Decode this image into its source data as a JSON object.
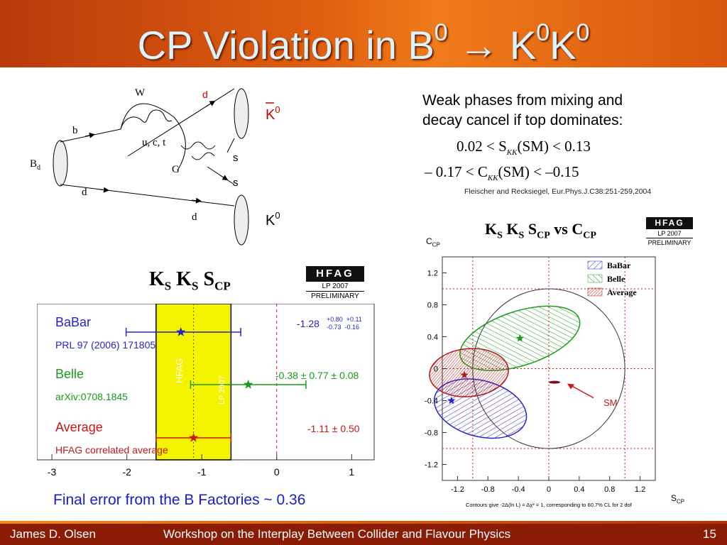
{
  "slide": {
    "title_main": "CP Violation in B",
    "title_sup1": "0",
    "title_arrow": "→",
    "title_k1": "K",
    "title_sup2": "0",
    "title_k2": "K",
    "title_sup3": "0"
  },
  "diagram": {
    "W": "W",
    "d_top": "d",
    "kbar": "K",
    "kbar_sup": "0",
    "b": "b",
    "uct": "u, c, t",
    "Bd": "B",
    "Bd_sub": "d",
    "G": "G",
    "s1": "s",
    "s2": "s",
    "d_left": "d",
    "d_bottom": "d",
    "k0": "K",
    "k0_sup": "0"
  },
  "text": {
    "line1": "Weak phases from mixing and",
    "line2": "decay cancel if top dominates:",
    "eq1": "0.02 < S",
    "eq1_sub": "KK",
    "eq1_tail": "(SM) < 0.13",
    "eq2": "– 0.17 < C",
    "eq2_sub": "KK",
    "eq2_tail": "(SM) < –0.15",
    "reference": "Fleischer and Recksiegel, Eur.Phys.J.C38:251-259,2004"
  },
  "hfag": {
    "logo": "HFAG",
    "tag1": "LP 2007",
    "tag2": "PRELIMINARY"
  },
  "left_plot": {
    "title_k": "K",
    "title_s": "S",
    "title_scp": "S",
    "title_cp": "CP",
    "band_label1": "HFAG",
    "band_label2": "LP 2007",
    "babar": "BaBar",
    "babar_ref": "PRL 97 (2006) 171805",
    "babar_value": "-1.28",
    "babar_err_up": "+0.80  +0.11",
    "babar_err_dn": "-0.73  -0.16",
    "belle": "Belle",
    "belle_ref": "arXiv:0708.1845",
    "belle_value": "-0.38 ± 0.77 ± 0.08",
    "average": "Average",
    "average_ref": "HFAG correlated average",
    "average_value": "-1.11 ± 0.50",
    "ticks": [
      "-3",
      "-2",
      "-1",
      "0",
      "1"
    ]
  },
  "right_plot": {
    "title_k": "K",
    "title_s": "S",
    "title_scp": "S",
    "title_cp": "CP",
    "title_vs": "vs",
    "title_c": "C",
    "ylabel": "C",
    "ylabel_sub": "CP",
    "xlabel": "S",
    "xlabel_sub": "CP",
    "legend": [
      "BaBar",
      "Belle",
      "Average"
    ],
    "yticks": [
      "1.2",
      "0.8",
      "0.4",
      "0",
      "-0.4",
      "-0.8",
      "-1.2"
    ],
    "xticks": [
      "-1.2",
      "-0.8",
      "-0.4",
      "0",
      "0.4",
      "0.8",
      "1.2"
    ],
    "sm_label": "SM",
    "caption": "Contours give -2Δ(ln L) = Δχ² = 1, corresponding to 60.7% CL for 2 dof"
  },
  "bottom_note": "Final error from the B Factories ~ 0.36",
  "footer": {
    "author": "James D. Olsen",
    "event": "Workshop on the Interplay Between Collider and Flavour Physics",
    "page": "15"
  },
  "chart_data": [
    {
      "type": "scatter",
      "title": "",
      "categories": [
        "BaBar",
        "Belle",
        "Average"
      ],
      "x": [
        -1.28,
        -0.38,
        -1.11
      ],
      "err_low": [
        0.73,
        0.77,
        0.5
      ],
      "err_high": [
        0.8,
        0.77,
        0.5
      ],
      "xlim": [
        -3.2,
        1.3
      ],
      "band": [
        -1.61,
        -0.61
      ]
    },
    {
      "type": "scatter",
      "title": "",
      "xlim": [
        -1.4,
        1.4
      ],
      "ylim": [
        -1.4,
        1.4
      ],
      "series": [
        {
          "name": "BaBar",
          "x": [
            -1.28
          ],
          "y": [
            -0.4
          ]
        },
        {
          "name": "Belle",
          "x": [
            -0.38
          ],
          "y": [
            0.38
          ]
        },
        {
          "name": "Average",
          "x": [
            -1.11
          ],
          "y": [
            -0.08
          ]
        }
      ],
      "sm": {
        "x": 0.075,
        "y": -0.17
      },
      "colors": {
        "babar": "#2424c8",
        "belle": "#1a9a1a",
        "average": "#b81818"
      }
    }
  ]
}
